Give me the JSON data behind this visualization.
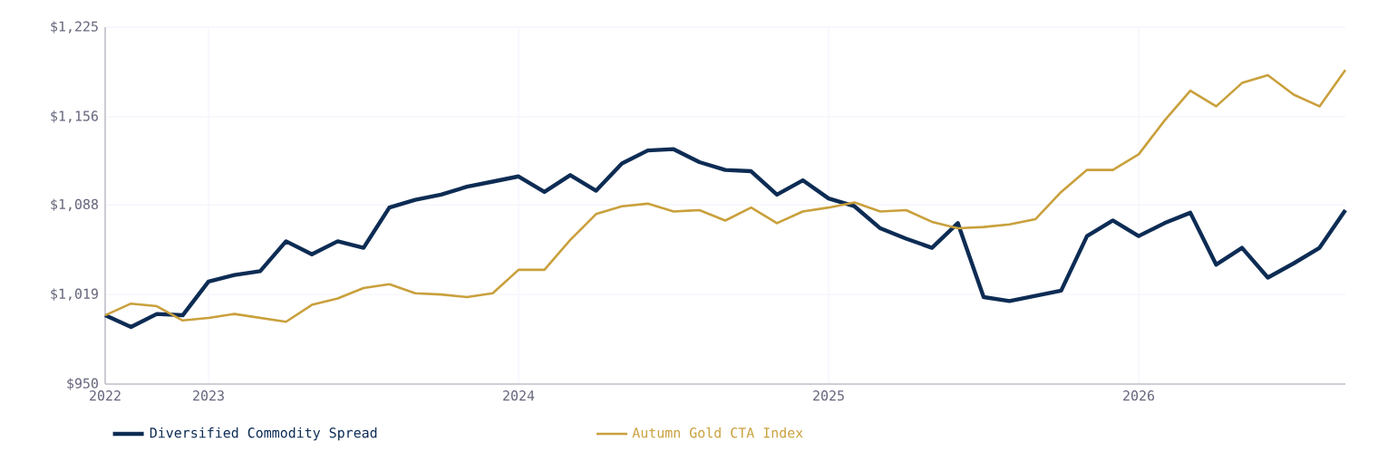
{
  "chart_data": {
    "type": "line",
    "x": [
      "2022-09",
      "2022-10",
      "2022-11",
      "2022-12",
      "2023-01",
      "2023-02",
      "2023-03",
      "2023-04",
      "2023-05",
      "2023-06",
      "2023-07",
      "2023-08",
      "2023-09",
      "2023-10",
      "2023-11",
      "2023-12",
      "2024-01",
      "2024-02",
      "2024-03",
      "2024-04",
      "2024-05",
      "2024-06",
      "2024-07",
      "2024-08",
      "2024-09",
      "2024-10",
      "2024-11",
      "2024-12",
      "2025-01",
      "2025-02",
      "2025-03",
      "2025-04",
      "2025-05",
      "2025-06",
      "2025-07",
      "2025-08",
      "2025-09",
      "2025-10",
      "2025-11",
      "2025-12",
      "2026-01",
      "2026-02",
      "2026-03",
      "2026-04",
      "2026-05",
      "2026-06",
      "2026-07",
      "2026-08",
      "2026-09"
    ],
    "series": [
      {
        "name": "Diversified Commodity Spread",
        "color": "#0d2c54",
        "values": [
          1003,
          994,
          1004,
          1003,
          1029,
          1034,
          1037,
          1060,
          1050,
          1060,
          1055,
          1086,
          1092,
          1096,
          1102,
          1106,
          1110,
          1098,
          1111,
          1099,
          1120,
          1130,
          1131,
          1121,
          1115,
          1114,
          1096,
          1107,
          1093,
          1087,
          1070,
          1062,
          1055,
          1074,
          1017,
          1014,
          1018,
          1022,
          1064,
          1076,
          1064,
          1074,
          1082,
          1042,
          1055,
          1032,
          1043,
          1055,
          1084
        ]
      },
      {
        "name": "Autumn Gold CTA Index",
        "color": "#c9a03c",
        "values": [
          1003,
          1012,
          1010,
          999,
          1001,
          1004,
          1001,
          998,
          1011,
          1016,
          1024,
          1027,
          1020,
          1019,
          1017,
          1020,
          1038,
          1038,
          1061,
          1081,
          1087,
          1089,
          1083,
          1084,
          1076,
          1086,
          1074,
          1083,
          1086,
          1090,
          1083,
          1084,
          1075,
          1070,
          1071,
          1073,
          1077,
          1098,
          1115,
          1115,
          1127,
          1153,
          1176,
          1164,
          1182,
          1188,
          1173,
          1164,
          1192
        ]
      }
    ],
    "xlim": [
      "2022-09",
      "2026-09"
    ],
    "xticks": [
      {
        "value": "2022-09",
        "label": "2022"
      },
      {
        "value": "2023-01",
        "label": "2023"
      },
      {
        "value": "2024-01",
        "label": "2024"
      },
      {
        "value": "2025-01",
        "label": "2025"
      },
      {
        "value": "2026-01",
        "label": "2026"
      }
    ],
    "ylim": [
      950,
      1225
    ],
    "yticks": [
      {
        "value": 950,
        "label": "$950"
      },
      {
        "value": 1019,
        "label": "$1,019"
      },
      {
        "value": 1088,
        "label": "$1,088"
      },
      {
        "value": 1156,
        "label": "$1,156"
      },
      {
        "value": 1225,
        "label": "$1,225"
      }
    ],
    "grid": true,
    "legend": "bottom",
    "marker": "none",
    "line_style": "solid"
  }
}
